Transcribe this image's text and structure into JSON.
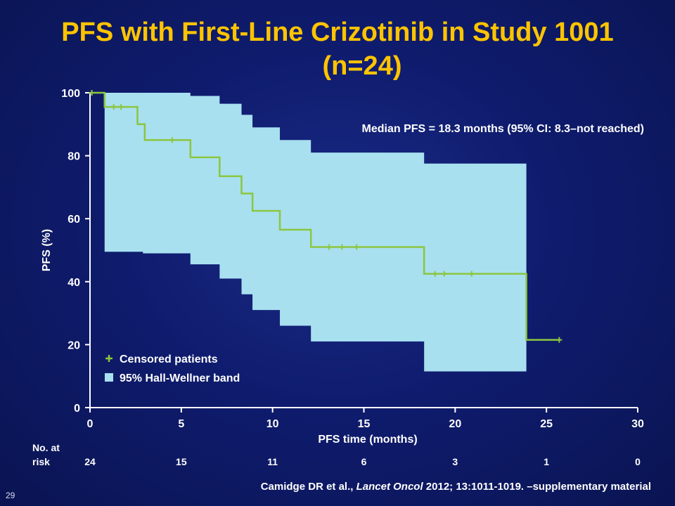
{
  "slide": {
    "title_line1": "PFS with First-Line Crizotinib in Study 1001",
    "title_line2": "(n=24)",
    "slide_number": "29",
    "citation_author": "Camidge DR et al.,",
    "citation_journal": "Lancet Oncol",
    "citation_rest": "2012; 13:1011-1019. –supplementary material"
  },
  "chart_data": {
    "type": "line",
    "title": "",
    "xlabel": "PFS time (months)",
    "ylabel": "PFS (%)",
    "xlim": [
      0,
      30
    ],
    "ylim": [
      0,
      100
    ],
    "xticks": [
      0,
      5,
      10,
      15,
      20,
      25,
      30
    ],
    "yticks": [
      0,
      20,
      40,
      60,
      80,
      100
    ],
    "annotation": "Median PFS = 18.3 months (95% CI: 8.3–not reached)",
    "legend": {
      "position": "bottom-left",
      "entries": [
        {
          "label": "Censored patients",
          "marker": "+",
          "color": "#8cc63f"
        },
        {
          "label": "95% Hall-Wellner band",
          "marker": "square",
          "color": "#a8e0f0"
        }
      ]
    },
    "km_curve": {
      "name": "",
      "color": "#8cc63f",
      "steps": [
        [
          0,
          100
        ],
        [
          0.8,
          95.5
        ],
        [
          2.6,
          90
        ],
        [
          3,
          85
        ],
        [
          5.5,
          79.5
        ],
        [
          7.1,
          73.5
        ],
        [
          8.3,
          68
        ],
        [
          8.9,
          62.5
        ],
        [
          10.4,
          56.5
        ],
        [
          12.1,
          51
        ],
        [
          18.3,
          42.5
        ],
        [
          23.9,
          21.5
        ],
        [
          25.7,
          21.5
        ]
      ]
    },
    "censored": [
      [
        0.1,
        100
      ],
      [
        1.3,
        95.5
      ],
      [
        1.7,
        95.5
      ],
      [
        4.5,
        85
      ],
      [
        13.1,
        51
      ],
      [
        13.8,
        51
      ],
      [
        14.6,
        51
      ],
      [
        18.9,
        42.5
      ],
      [
        19.4,
        42.5
      ],
      [
        20.9,
        42.5
      ],
      [
        25.7,
        21.5
      ]
    ],
    "band_upper": [
      [
        0.8,
        100
      ],
      [
        5.5,
        99
      ],
      [
        7.1,
        96.5
      ],
      [
        8.3,
        93
      ],
      [
        8.9,
        89
      ],
      [
        10.4,
        85
      ],
      [
        12.1,
        81
      ],
      [
        18.3,
        77.5
      ],
      [
        23.9,
        77.5
      ]
    ],
    "band_lower": [
      [
        0.8,
        49.5
      ],
      [
        2.9,
        49
      ],
      [
        5.5,
        45.5
      ],
      [
        7.1,
        41
      ],
      [
        8.3,
        36
      ],
      [
        8.9,
        31
      ],
      [
        10.4,
        26
      ],
      [
        12.1,
        21
      ],
      [
        18.3,
        11.5
      ],
      [
        23.9,
        11.5
      ]
    ],
    "at_risk": {
      "label_line1": "No. at",
      "label_line2": "risk",
      "times": [
        0,
        5,
        10,
        15,
        20,
        25,
        30
      ],
      "values": [
        "24",
        "15",
        "11",
        "6",
        "3",
        "1",
        "0"
      ]
    }
  }
}
